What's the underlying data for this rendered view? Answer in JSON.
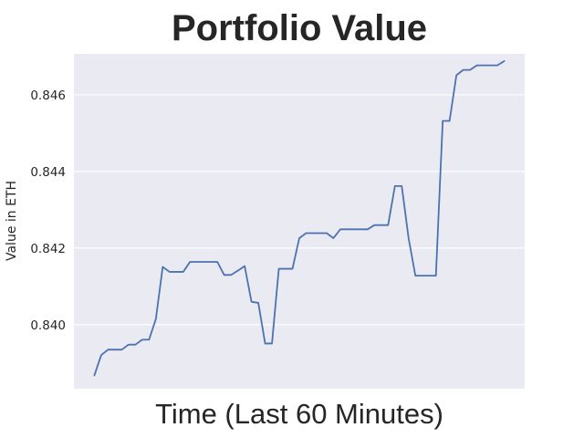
{
  "chart_data": {
    "type": "line",
    "title": "Portfolio Value",
    "xlabel": "Time (Last 60 Minutes)",
    "ylabel": "Value in ETH",
    "x_ticks_shown": false,
    "xlim": [
      -3,
      63
    ],
    "ylim": [
      0.83833,
      0.84707
    ],
    "yticks": [
      0.84,
      0.842,
      0.844,
      0.846
    ],
    "ytick_labels": [
      "0.840",
      "0.842",
      "0.844",
      "0.846"
    ],
    "grid": true,
    "legend": "none",
    "colors": {
      "line": "#4c72b0",
      "plot_background": "#eaeaf2",
      "grid": "#ffffff",
      "text": "#262626"
    },
    "series": [
      {
        "x": [
          0,
          1,
          2,
          3,
          4,
          5,
          6,
          7,
          8,
          9,
          10,
          11,
          12,
          13,
          14,
          15,
          16,
          17,
          18,
          19,
          20,
          21,
          22,
          23,
          24,
          25,
          26,
          27,
          28,
          29,
          30,
          31,
          32,
          33,
          34,
          35,
          36,
          37,
          38,
          39,
          40,
          41,
          42,
          43,
          44,
          45,
          46,
          47,
          48,
          49,
          50,
          51,
          52,
          53,
          54,
          55,
          56,
          57,
          58,
          59,
          60
        ],
        "values": [
          0.83868,
          0.83921,
          0.83935,
          0.83935,
          0.83935,
          0.83948,
          0.83948,
          0.83961,
          0.83961,
          0.84015,
          0.84151,
          0.84138,
          0.84138,
          0.84138,
          0.84164,
          0.84164,
          0.84164,
          0.84164,
          0.84164,
          0.8413,
          0.8413,
          0.84141,
          0.84153,
          0.8406,
          0.84057,
          0.83951,
          0.83951,
          0.84146,
          0.84146,
          0.84146,
          0.84226,
          0.84239,
          0.84239,
          0.84239,
          0.84239,
          0.84226,
          0.84249,
          0.84249,
          0.84249,
          0.84249,
          0.84249,
          0.8426,
          0.8426,
          0.8426,
          0.84362,
          0.84362,
          0.84226,
          0.84128,
          0.84128,
          0.84128,
          0.84128,
          0.84532,
          0.84532,
          0.84651,
          0.84665,
          0.84665,
          0.84677,
          0.84677,
          0.84677,
          0.84677,
          0.84688
        ]
      }
    ]
  }
}
